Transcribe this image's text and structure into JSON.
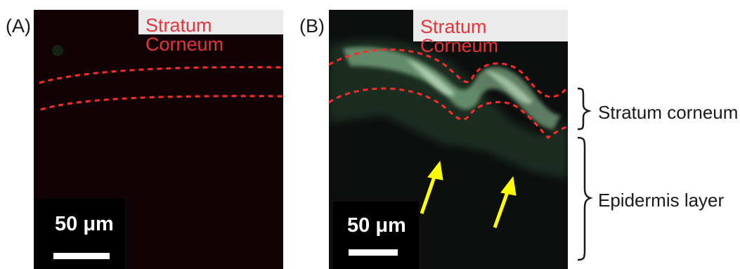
{
  "panels": [
    {
      "letter": "(A)",
      "label": "Stratum Corneum",
      "scale": "50 μm"
    },
    {
      "letter": "(B)",
      "label": "Stratum Corneum",
      "scale": "50 μm"
    }
  ],
  "annotations": {
    "stratum": "Stratum corneum",
    "epidermis": "Epidermis layer"
  },
  "colors": {
    "dashed_boundary": "#ff2a2a",
    "label_text": "#e8333a",
    "fluorescence": "#9ed8a6",
    "arrow": "#ffff00"
  }
}
